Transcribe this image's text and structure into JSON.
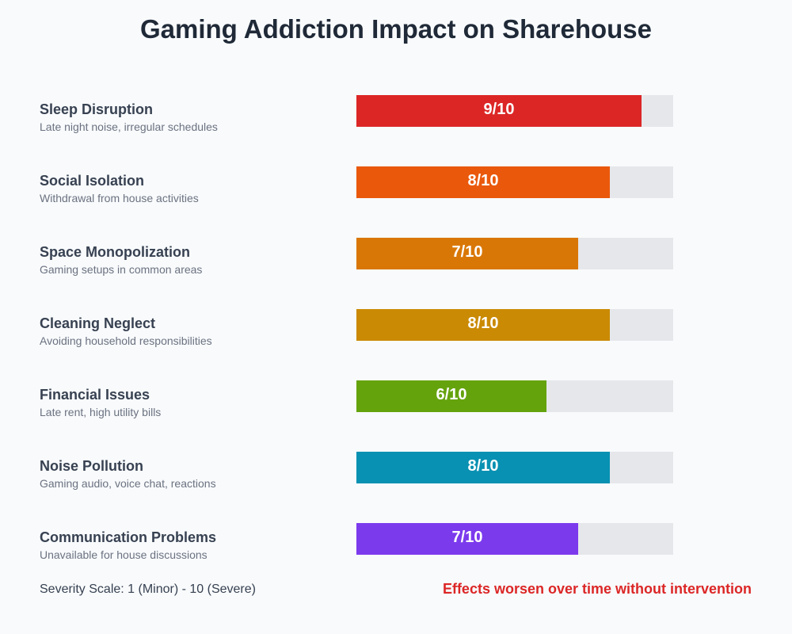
{
  "chart_data": {
    "type": "bar",
    "orientation": "horizontal",
    "title": "Gaming Addiction Impact on Sharehouse",
    "xlim": [
      0,
      10
    ],
    "value_format": "{v}/10",
    "categories": [
      "Sleep Disruption",
      "Social Isolation",
      "Space Monopolization",
      "Cleaning Neglect",
      "Financial Issues",
      "Noise Pollution",
      "Communication Problems"
    ],
    "descriptions": [
      "Late night noise, irregular schedules",
      "Withdrawal from house activities",
      "Gaming setups in common areas",
      "Avoiding household responsibilities",
      "Late rent, high utility bills",
      "Gaming audio, voice chat, reactions",
      "Unavailable for house discussions"
    ],
    "values": [
      9,
      8,
      7,
      8,
      6,
      8,
      7
    ],
    "colors": [
      "#dc2626",
      "#ea580c",
      "#d97706",
      "#ca8a04",
      "#65a30d",
      "#0891b2",
      "#7c3aed"
    ],
    "track_color": "#e5e7eb",
    "footer_left": "Severity Scale: 1 (Minor) - 10 (Severe)",
    "footer_right": "Effects worsen over time without intervention"
  }
}
